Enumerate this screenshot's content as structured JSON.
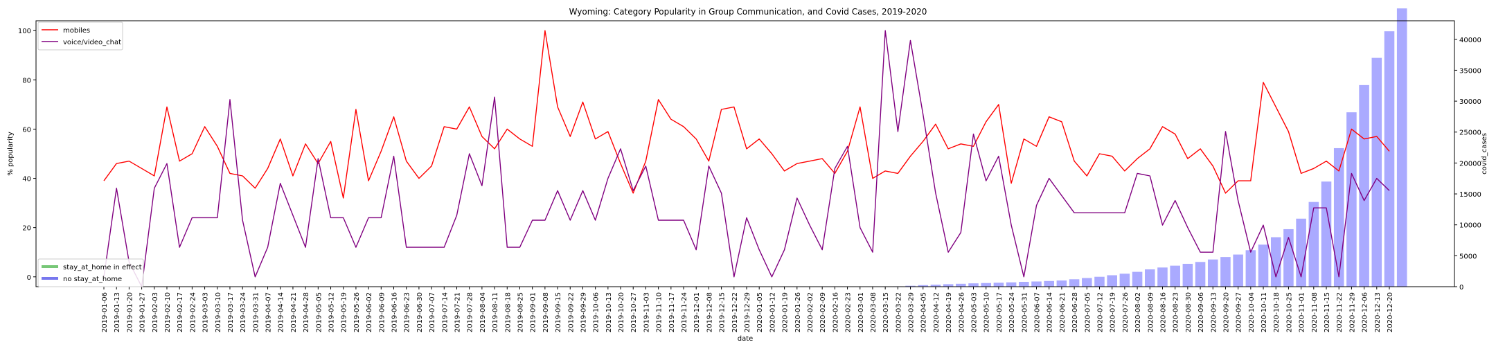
{
  "chart_data": {
    "type": "line",
    "title": "Wyoming: Category Popularity in Group Communication, and Covid Cases, 2019-2020",
    "xlabel": "date",
    "ylabel": "% popularity",
    "y2label": "covid_cases",
    "ylim": [
      -4,
      104
    ],
    "y2lim": [
      0,
      43000
    ],
    "yticks": [
      0,
      20,
      40,
      60,
      80,
      100
    ],
    "y2ticks": [
      0,
      5000,
      10000,
      15000,
      20000,
      25000,
      30000,
      35000,
      40000
    ],
    "legend_top": {
      "position": "top-left",
      "entries": [
        {
          "label": "mobiles",
          "color": "#ff0000"
        },
        {
          "label": "voice/video_chat",
          "color": "#800080"
        }
      ]
    },
    "legend_bottom": {
      "position": "bottom-left",
      "entries": [
        {
          "label": "stay_at_home in effect",
          "color": "#77c777"
        },
        {
          "label": "no stay_at_home",
          "color": "#7777ee"
        }
      ]
    },
    "x": [
      "2019-01-06",
      "2019-01-13",
      "2019-01-20",
      "2019-01-27",
      "2019-02-03",
      "2019-02-10",
      "2019-02-17",
      "2019-02-24",
      "2019-03-03",
      "2019-03-10",
      "2019-03-17",
      "2019-03-24",
      "2019-03-31",
      "2019-04-07",
      "2019-04-14",
      "2019-04-21",
      "2019-04-28",
      "2019-05-05",
      "2019-05-12",
      "2019-05-19",
      "2019-05-26",
      "2019-06-02",
      "2019-06-09",
      "2019-06-16",
      "2019-06-23",
      "2019-06-30",
      "2019-07-07",
      "2019-07-14",
      "2019-07-21",
      "2019-07-28",
      "2019-08-04",
      "2019-08-11",
      "2019-08-18",
      "2019-08-25",
      "2019-09-01",
      "2019-09-08",
      "2019-09-15",
      "2019-09-22",
      "2019-09-29",
      "2019-10-06",
      "2019-10-13",
      "2019-10-20",
      "2019-10-27",
      "2019-11-03",
      "2019-11-10",
      "2019-11-17",
      "2019-11-24",
      "2019-12-01",
      "2019-12-08",
      "2019-12-15",
      "2019-12-22",
      "2019-12-29",
      "2020-01-05",
      "2020-01-12",
      "2020-01-19",
      "2020-01-26",
      "2020-02-02",
      "2020-02-09",
      "2020-02-16",
      "2020-02-23",
      "2020-03-01",
      "2020-03-08",
      "2020-03-15",
      "2020-03-22",
      "2020-03-29",
      "2020-04-05",
      "2020-04-12",
      "2020-04-19",
      "2020-04-26",
      "2020-05-03",
      "2020-05-10",
      "2020-05-17",
      "2020-05-24",
      "2020-05-31",
      "2020-06-07",
      "2020-06-14",
      "2020-06-21",
      "2020-06-28",
      "2020-07-05",
      "2020-07-12",
      "2020-07-19",
      "2020-07-26",
      "2020-08-02",
      "2020-08-09",
      "2020-08-16",
      "2020-08-23",
      "2020-08-30",
      "2020-09-06",
      "2020-09-13",
      "2020-09-20",
      "2020-09-27",
      "2020-10-04",
      "2020-10-11",
      "2020-10-18",
      "2020-10-25",
      "2020-11-01",
      "2020-11-08",
      "2020-11-15",
      "2020-11-22",
      "2020-11-29",
      "2020-12-06",
      "2020-12-13",
      "2020-12-20"
    ],
    "series": [
      {
        "name": "mobiles",
        "color": "#ff0000",
        "values": [
          39,
          46,
          47,
          44,
          41,
          69,
          47,
          50,
          61,
          53,
          42,
          41,
          36,
          44,
          56,
          41,
          54,
          46,
          55,
          32,
          68,
          39,
          51,
          65,
          47,
          40,
          45,
          61,
          60,
          69,
          57,
          52,
          60,
          56,
          53,
          100,
          69,
          57,
          71,
          56,
          59,
          46,
          34,
          47,
          72,
          64,
          61,
          56,
          47,
          68,
          69,
          52,
          56,
          50,
          43,
          46,
          47,
          48,
          42,
          51,
          69,
          40,
          43,
          42,
          49,
          55,
          62,
          52,
          54,
          53,
          63,
          70,
          38,
          56,
          53,
          65,
          63,
          47,
          41,
          50,
          49,
          43,
          48,
          52,
          61,
          58,
          48,
          52,
          45,
          34,
          39,
          39,
          79,
          69,
          59,
          42,
          44,
          47,
          43,
          60,
          56,
          57,
          51
        ]
      },
      {
        "name": "voice/video_chat",
        "color": "#800080",
        "values": [
          0,
          36,
          6,
          -4,
          36,
          46,
          12,
          24,
          24,
          24,
          72,
          23,
          0,
          12,
          38,
          25,
          12,
          48,
          24,
          24,
          12,
          24,
          24,
          49,
          12,
          12,
          12,
          12,
          25,
          50,
          37,
          73,
          12,
          12,
          23,
          23,
          35,
          23,
          35,
          23,
          40,
          52,
          35,
          45,
          23,
          23,
          23,
          11,
          45,
          34,
          0,
          24,
          11,
          0,
          11,
          32,
          21,
          11,
          44,
          53,
          20,
          10,
          100,
          59,
          96,
          66,
          34,
          10,
          18,
          58,
          39,
          49,
          21,
          0,
          29,
          40,
          33,
          26,
          26,
          26,
          26,
          26,
          42,
          41,
          21,
          31,
          20,
          10,
          10,
          59,
          31,
          10,
          21,
          0,
          16,
          0,
          28,
          28,
          0,
          42,
          31,
          40,
          35
        ]
      }
    ],
    "covid_cases": [
      0,
      0,
      0,
      0,
      0,
      0,
      0,
      0,
      0,
      0,
      0,
      0,
      0,
      0,
      0,
      0,
      0,
      0,
      0,
      0,
      0,
      0,
      0,
      0,
      0,
      0,
      0,
      0,
      0,
      0,
      0,
      0,
      0,
      0,
      0,
      0,
      0,
      0,
      0,
      0,
      0,
      0,
      0,
      0,
      0,
      0,
      0,
      0,
      0,
      0,
      0,
      0,
      0,
      0,
      0,
      0,
      0,
      0,
      0,
      0,
      0,
      0,
      30,
      60,
      150,
      250,
      320,
      400,
      470,
      540,
      590,
      640,
      700,
      780,
      840,
      920,
      1000,
      1200,
      1400,
      1600,
      1850,
      2100,
      2400,
      2800,
      3100,
      3400,
      3700,
      4000,
      4400,
      4800,
      5200,
      5900,
      6800,
      8000,
      9300,
      11000,
      13700,
      17000,
      22400,
      28200,
      32600,
      37000,
      41300,
      45000
    ],
    "bar_color": "#aaaaff"
  }
}
